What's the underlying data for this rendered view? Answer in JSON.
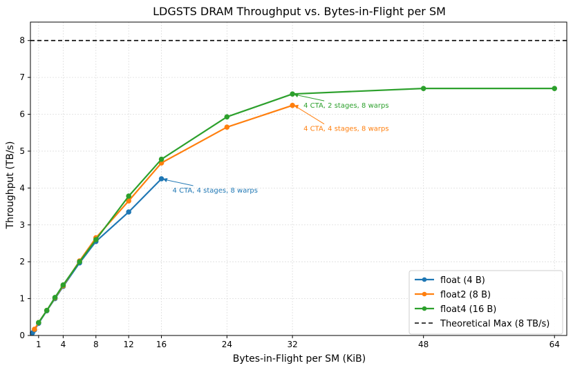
{
  "chart_data": {
    "type": "line",
    "title": "LDGSTS DRAM Throughput vs. Bytes-in-Flight per SM",
    "xlabel": "Bytes-in-Flight per SM (KiB)",
    "ylabel": "Throughput (TB/s)",
    "xlim": [
      0,
      65.5
    ],
    "ylim": [
      0,
      8.5
    ],
    "xticks": [
      1,
      4,
      8,
      12,
      16,
      24,
      32,
      48,
      64
    ],
    "yticks": [
      0,
      1,
      2,
      3,
      4,
      5,
      6,
      7,
      8
    ],
    "grid": true,
    "legend_position": "bottom-right",
    "series": [
      {
        "name": "float (4 B)",
        "color": "#1f77b4",
        "x": [
          0.25,
          0.5,
          1,
          2,
          3,
          4,
          6,
          8,
          12,
          16
        ],
        "y": [
          0.07,
          0.15,
          0.33,
          0.67,
          1.0,
          1.33,
          1.97,
          2.55,
          3.35,
          4.25
        ]
      },
      {
        "name": "float2 (8 B)",
        "color": "#ff7f0e",
        "x": [
          0.5,
          1,
          2,
          3,
          4,
          6,
          8,
          12,
          16,
          24,
          32
        ],
        "y": [
          0.17,
          0.35,
          0.68,
          1.02,
          1.35,
          2.02,
          2.65,
          3.65,
          4.68,
          5.65,
          6.24
        ]
      },
      {
        "name": "float4 (16 B)",
        "color": "#2ca02c",
        "x": [
          1,
          2,
          3,
          4,
          6,
          8,
          12,
          16,
          24,
          32,
          48,
          64
        ],
        "y": [
          0.35,
          0.68,
          1.03,
          1.37,
          2.0,
          2.6,
          3.78,
          4.78,
          5.93,
          6.55,
          6.7,
          6.7
        ]
      }
    ],
    "reference_lines": [
      {
        "name": "Theoretical Max (8 TB/s)",
        "y": 8,
        "color": "#000000",
        "style": "dashed"
      }
    ],
    "annotations": [
      {
        "text": "4 CTA, 2 stages, 8 warps",
        "x": 32,
        "y": 6.55,
        "color": "#2ca02c"
      },
      {
        "text": "4 CTA, 4 stages, 8 warps",
        "x": 32,
        "y": 6.24,
        "color": "#ff7f0e"
      },
      {
        "text": "4 CTA, 4 stages, 8 warps",
        "x": 16,
        "y": 4.25,
        "color": "#1f77b4"
      }
    ]
  }
}
